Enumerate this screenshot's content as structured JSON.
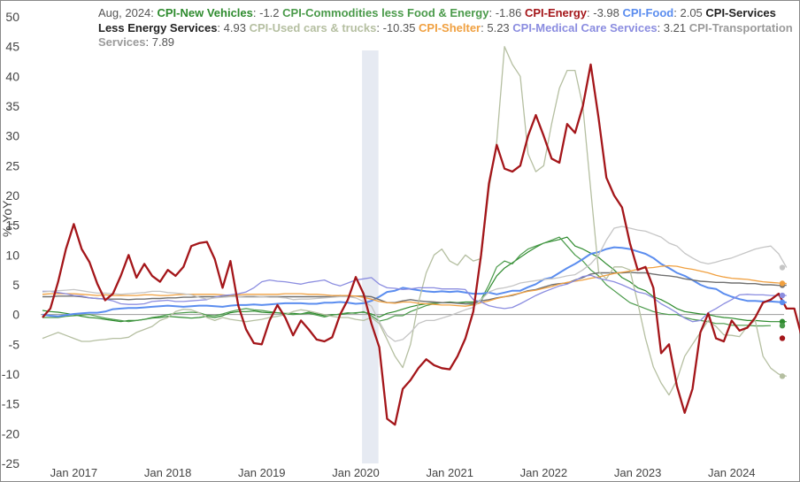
{
  "legend": {
    "date": "Aug, 2024:",
    "entries": [
      {
        "name": "CPI-New Vehicles",
        "value": "-1.2"
      },
      {
        "name": "CPI-Commodities less Food & Energy",
        "value": "-1.86"
      },
      {
        "name": "CPI-Energy",
        "value": "-3.98"
      },
      {
        "name": "CPI-Food",
        "value": "2.05"
      },
      {
        "name": "CPI-Services Less Energy Services",
        "value": "4.93"
      },
      {
        "name": "CPI-Used cars & trucks",
        "value": "-10.35"
      },
      {
        "name": "CPI-Shelter",
        "value": "5.23"
      },
      {
        "name": "CPI-Medical Care Services",
        "value": "3.21"
      },
      {
        "name": "CPI-Transportation Services",
        "value": "7.89"
      }
    ]
  },
  "chart_data": {
    "type": "line",
    "ylabel": "%,YoY",
    "ylim": [
      -25,
      50
    ],
    "yticks": [
      "50",
      "45",
      "40",
      "35",
      "30",
      "25",
      "20",
      "15",
      "10",
      "5",
      "0",
      "-5",
      "-10",
      "-15",
      "-20",
      "-25"
    ],
    "xticks": [
      "Jan 2017",
      "Jan 2018",
      "Jan 2019",
      "Jan 2020",
      "Jan 2021",
      "Jan 2022",
      "Jan 2023",
      "Jan 2024"
    ],
    "x_start": "Sep 2016",
    "x_end": "Aug 2024",
    "recession": {
      "from": "Feb 2020",
      "to": "Apr 2020"
    },
    "zero_line": true,
    "series": [
      {
        "name": "CPI-Energy",
        "color": "#a4161a",
        "width": 2.3,
        "values": [
          -0.5,
          1,
          5.5,
          11,
          15.2,
          11,
          8.8,
          5.2,
          2.4,
          3.5,
          6.5,
          10,
          6.2,
          8.5,
          6.5,
          5.5,
          7.5,
          6.5,
          8,
          11.5,
          12,
          12.2,
          9.3,
          4.5,
          9,
          1.5,
          -2.5,
          -4.8,
          -5,
          -1,
          1.6,
          -0.5,
          -3.5,
          -1,
          -2.5,
          -4.2,
          -4.5,
          -3.8,
          0,
          2.5,
          6.3,
          3.5,
          -1.5,
          -5.5,
          -17.5,
          -18.5,
          -12.5,
          -11,
          -9,
          -7.5,
          -8.5,
          -9,
          -9.2,
          -7,
          -4,
          0.5,
          10,
          22,
          28.5,
          24.5,
          24,
          25,
          30,
          33.5,
          30,
          26.2,
          25.5,
          32,
          30.5,
          35,
          42,
          33,
          23,
          20,
          18,
          12,
          7.5,
          8,
          4.5,
          -6.5,
          -5,
          -12,
          -16.5,
          -12.5,
          -3,
          0.2,
          -4,
          -4.5,
          -1,
          -2.7,
          -2.2,
          -0.5,
          2,
          2.5,
          3.5,
          1,
          1,
          -3.98
        ]
      },
      {
        "name": "CPI-New Vehicles",
        "color": "#2e8b2e",
        "width": 1.2,
        "values": [
          0.7,
          0.5,
          0.4,
          0.2,
          0,
          -0.3,
          -0.5,
          -0.6,
          -0.8,
          -1,
          -1.2,
          -1,
          -1,
          -0.8,
          -0.6,
          -0.5,
          -0.3,
          -0.4,
          -0.5,
          -0.6,
          -0.5,
          -0.3,
          -0.5,
          -0.2,
          0.3,
          0.5,
          0.5,
          0.6,
          0.4,
          0.3,
          0.3,
          0.2,
          0.2,
          0.1,
          0.4,
          0.1,
          -0.2,
          0,
          0,
          0.2,
          0.3,
          0.4,
          0.1,
          -0.4,
          0.2,
          0.5,
          0.9,
          1.3,
          1.6,
          1.8,
          1.9,
          2,
          2.1,
          2,
          2.1,
          2.1,
          2.3,
          4.3,
          6.5,
          7.8,
          8.7,
          9.6,
          10.5,
          11.3,
          12,
          12.3,
          12.6,
          13,
          11.5,
          11,
          10.3,
          9.6,
          8.5,
          7.5,
          6.2,
          5.5,
          4.5,
          4,
          3,
          2.5,
          1.8,
          1,
          0.5,
          0.3,
          0.1,
          0,
          -0.3,
          -0.5,
          -0.6,
          -0.8,
          -1,
          -1,
          -1.1,
          -1.2,
          -1.2,
          -1.2
        ]
      },
      {
        "name": "CPI-Commodities less Food & Energy",
        "color": "#4a9a4a",
        "width": 1.2,
        "values": [
          -0.5,
          -0.5,
          -0.5,
          -0.3,
          -0.2,
          -0.1,
          0,
          -0.3,
          -0.6,
          -0.8,
          -1,
          -1.2,
          -1,
          -0.8,
          -0.5,
          -0.3,
          0,
          0.2,
          0.3,
          0.4,
          0.3,
          -0.1,
          -0.2,
          0.1,
          0.5,
          0.8,
          1,
          0.8,
          0.7,
          0.5,
          0.3,
          0.1,
          0,
          0.1,
          0.2,
          -0.1,
          -0.4,
          -0.1,
          0.1,
          0.3,
          0.2,
          0.5,
          -0.2,
          -1.1,
          -0.8,
          -0.2,
          -0.2,
          0.5,
          1,
          1.5,
          1.8,
          2,
          2,
          2,
          1.8,
          1.7,
          2.5,
          5,
          8,
          9,
          8.5,
          10,
          11,
          11.5,
          12,
          12.5,
          13,
          11.5,
          10,
          9,
          7.5,
          6.5,
          5,
          4,
          3,
          2,
          1.5,
          1,
          0.5,
          0.2,
          0,
          0,
          -0.5,
          -0.8,
          -1,
          -1.2,
          -1.5,
          -1.5,
          -1.8,
          -1.8,
          -1.8,
          -1.9,
          -1.9,
          -1.86
        ]
      },
      {
        "name": "CPI-Food",
        "color": "#5b8def",
        "width": 2,
        "values": [
          0,
          -0.2,
          -0.3,
          -0.1,
          0.1,
          0.2,
          0.3,
          0.3,
          0.5,
          0.9,
          1,
          1.1,
          1.1,
          1.2,
          1.3,
          1.4,
          1.5,
          1.4,
          1.3,
          1.4,
          1.5,
          1.5,
          1.4,
          1.3,
          1.5,
          1.6,
          1.6,
          1.7,
          1.6,
          1.7,
          1.8,
          1.9,
          1.9,
          1.9,
          1.8,
          1.8,
          2,
          2,
          2.1,
          2,
          1.8,
          1.9,
          2.3,
          3,
          3.8,
          4,
          4.5,
          4.3,
          4.1,
          3.9,
          3.8,
          3.9,
          3.8,
          3.9,
          3.7,
          3.5,
          3.5,
          3.7,
          3.4,
          3.7,
          4,
          4,
          4.6,
          5.1,
          5.9,
          6.2,
          7,
          7.8,
          8.5,
          9.3,
          10.2,
          10.5,
          11,
          11.3,
          11.2,
          11,
          10.6,
          10.2,
          9.5,
          8.5,
          7.8,
          7,
          6.5,
          5.8,
          5,
          4.5,
          4.3,
          3.5,
          3,
          2.6,
          2.3,
          2.3,
          2.2,
          2.2,
          2.1,
          2.05
        ]
      },
      {
        "name": "CPI-Services Less Energy Services",
        "color": "#707070",
        "width": 1.4,
        "values": [
          3,
          3,
          3.1,
          3.1,
          3.1,
          3,
          2.8,
          2.7,
          2.6,
          2.6,
          2.6,
          2.5,
          2.6,
          2.6,
          2.7,
          2.7,
          2.8,
          2.8,
          2.9,
          2.9,
          3,
          3,
          3,
          3,
          3.1,
          3,
          3,
          3,
          3,
          3,
          3,
          3,
          3,
          3,
          3,
          3,
          3,
          3,
          3.2,
          3.1,
          3.1,
          3.1,
          3,
          2.5,
          2,
          2,
          2.3,
          2.5,
          2.3,
          2.2,
          2.1,
          2,
          2,
          1.9,
          1.8,
          1.9,
          2.3,
          2.5,
          2.8,
          3,
          3.2,
          3.6,
          4,
          4.2,
          4.6,
          5,
          5.2,
          5.3,
          5.8,
          6.2,
          6.8,
          7,
          7,
          7,
          7,
          7.1,
          7,
          7,
          6.8,
          6.6,
          6.5,
          6.3,
          6,
          5.8,
          5.6,
          5.5,
          5.4,
          5.4,
          5.3,
          5.3,
          5.2,
          5.2,
          5,
          5,
          4.9,
          4.93
        ]
      },
      {
        "name": "CPI-Used cars & trucks",
        "color": "#b5bfa1",
        "width": 1.3,
        "values": [
          -4,
          -3.5,
          -3,
          -3.5,
          -4,
          -4.5,
          -4.5,
          -4.3,
          -4.2,
          -4,
          -4,
          -3.8,
          -3,
          -2.5,
          -2,
          -1,
          -0.5,
          0.5,
          0.9,
          0.8,
          0.3,
          -0.5,
          -1,
          -0.5,
          -0.8,
          -1,
          -1.2,
          -1,
          -0.8,
          -0.5,
          -0.3,
          0,
          0.5,
          0.8,
          0.6,
          0.3,
          0,
          -0.3,
          -0.5,
          -0.5,
          -0.8,
          -1,
          -0.5,
          -1.5,
          -4.2,
          -7,
          -8.9,
          -5,
          2,
          7,
          10,
          11,
          9,
          8.3,
          10,
          9,
          9.4,
          21,
          29,
          45,
          42,
          40,
          27,
          24,
          25,
          32,
          38,
          41,
          41,
          35,
          21,
          7.2,
          6,
          8,
          8,
          7.5,
          2,
          -4,
          -8.8,
          -11.5,
          -13.5,
          -11,
          -7,
          -5,
          -3,
          -1,
          -2,
          -3.4,
          -3.5,
          -3.7,
          -2,
          -1,
          -7,
          -9,
          -10,
          -10.35
        ]
      },
      {
        "name": "CPI-Shelter",
        "color": "#f0a040",
        "width": 1.3,
        "values": [
          3.4,
          3.5,
          3.5,
          3.5,
          3.5,
          3.4,
          3.3,
          3.2,
          3.3,
          3.2,
          3.2,
          3.2,
          3.2,
          3.3,
          3.3,
          3.2,
          3.2,
          3.3,
          3.4,
          3.4,
          3.4,
          3.4,
          3.4,
          3.3,
          3.2,
          3.3,
          3.4,
          3.4,
          3.4,
          3.4,
          3.4,
          3.5,
          3.5,
          3.5,
          3.4,
          3.4,
          3.3,
          3.2,
          3.2,
          3.2,
          3.1,
          2.9,
          2.6,
          2.2,
          2.0,
          1.9,
          2.1,
          2.1,
          1.9,
          1.8,
          1.7,
          1.6,
          1.6,
          1.5,
          1.4,
          1.6,
          2.0,
          2.3,
          2.7,
          3.0,
          3.3,
          3.6,
          3.9,
          4.1,
          4.4,
          4.7,
          5.1,
          5.4,
          5.6,
          5.8,
          6.1,
          6.3,
          6.6,
          6.9,
          7.1,
          7.3,
          7.6,
          7.8,
          7.9,
          8.1,
          8.2,
          8.1,
          7.8,
          7.6,
          7.3,
          7.0,
          6.6,
          6.3,
          6.1,
          6.0,
          5.9,
          5.7,
          5.5,
          5.4,
          5.3,
          5.23
        ]
      },
      {
        "name": "CPI-Medical Care Services",
        "color": "#8b8de0",
        "width": 1.3,
        "values": [
          3.9,
          3.9,
          3.7,
          3.5,
          3.2,
          3.1,
          2.8,
          2.7,
          2.6,
          2.3,
          1.8,
          1.7,
          1.7,
          1.8,
          2.2,
          2.3,
          2.4,
          2.2,
          2.2,
          2.3,
          2.4,
          2.5,
          2.9,
          3.2,
          3.3,
          3.5,
          3.8,
          4.5,
          5.5,
          5.8,
          5.6,
          5.5,
          5.3,
          5.1,
          5.4,
          5.6,
          5.8,
          5.2,
          4.8,
          5.3,
          5.8,
          6.0,
          6.2,
          5.1,
          4.5,
          4.4,
          4.2,
          4.3,
          4.5,
          4.5,
          4.5,
          4.3,
          4.3,
          4.3,
          4.2,
          2.5,
          2.1,
          1.5,
          1.2,
          1.0,
          1.2,
          1.8,
          2.5,
          3.2,
          3.8,
          4.3,
          4.8,
          5.1,
          5.7,
          6.4,
          6.6,
          6.1,
          5.8,
          5.5,
          5.0,
          4.4,
          3.8,
          3.5,
          2.8,
          1.8,
          1.1,
          0.3,
          -0.6,
          -1.2,
          -1.0,
          0.3,
          1.0,
          1.8,
          2.5,
          3.3,
          3.4,
          3.3,
          3.3,
          3.2,
          3.2,
          3.21
        ]
      },
      {
        "name": "CPI-Transportation Services",
        "color": "#c5c5c5",
        "width": 1.3,
        "values": [
          3.8,
          3.9,
          4.0,
          4.1,
          4.2,
          4.0,
          3.8,
          3.6,
          3.6,
          3.5,
          3.4,
          3.5,
          3.6,
          3.7,
          3.9,
          3.9,
          3.7,
          3.6,
          3.5,
          3.3,
          2.9,
          2.6,
          2.8,
          2.9,
          3.0,
          3.0,
          3.1,
          3.1,
          3.0,
          2.9,
          2.9,
          2.8,
          2.5,
          2.6,
          2.6,
          2.7,
          2.8,
          2.9,
          3.0,
          3.0,
          2.8,
          2.2,
          1.4,
          -1.2,
          -3.5,
          -4.5,
          -4.2,
          -3.0,
          -1.5,
          -1.0,
          -1.0,
          -0.6,
          -0.2,
          0.3,
          0.8,
          1.2,
          2.5,
          3.8,
          4.3,
          4.5,
          4.8,
          5.3,
          5.5,
          5.7,
          5.9,
          6.0,
          6.2,
          6.5,
          6.7,
          7.5,
          8.5,
          10.0,
          12.5,
          14.5,
          14.8,
          14.5,
          14.2,
          14.0,
          13.5,
          13.0,
          12.0,
          11.5,
          10.3,
          9.5,
          8.8,
          8.5,
          8.8,
          9.2,
          9.5,
          10.0,
          10.5,
          11.0,
          11.3,
          11.5,
          10.2,
          7.89
        ]
      }
    ]
  }
}
